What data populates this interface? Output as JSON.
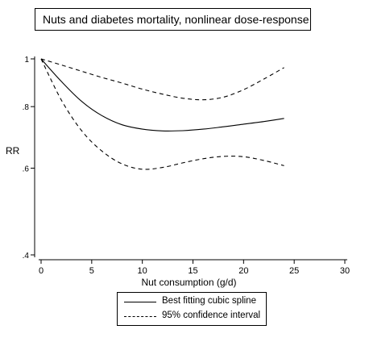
{
  "chart_data": {
    "type": "line",
    "title": "Nuts and diabetes mortality, nonlinear dose-response",
    "xlabel": "Nut consumption (g/d)",
    "ylabel": "RR",
    "x_ticks": [
      "0",
      "5",
      "10",
      "15",
      "20",
      "25",
      "30"
    ],
    "y_ticks": [
      "1",
      ".8",
      ".6",
      ".4"
    ],
    "xlim": [
      0,
      30
    ],
    "ylim": [
      0.4,
      1.0
    ],
    "y_scale": "log",
    "grid": false,
    "legend_position": "bottom",
    "x": [
      0,
      2,
      4,
      6,
      8,
      10,
      12,
      14,
      16,
      18,
      20,
      22,
      24
    ],
    "series": [
      {
        "name": "Best fitting cubic spline",
        "style": "solid",
        "values": [
          1.0,
          0.9,
          0.82,
          0.767,
          0.735,
          0.72,
          0.714,
          0.715,
          0.72,
          0.728,
          0.737,
          0.746,
          0.757
        ]
      },
      {
        "name": "95% confidence interval",
        "style": "dashed",
        "role": "lower",
        "values": [
          1.0,
          0.825,
          0.715,
          0.65,
          0.612,
          0.597,
          0.602,
          0.615,
          0.627,
          0.634,
          0.633,
          0.622,
          0.607
        ]
      },
      {
        "name": "95% confidence interval",
        "style": "dashed",
        "role": "upper",
        "values": [
          1.0,
          0.972,
          0.944,
          0.917,
          0.893,
          0.868,
          0.848,
          0.832,
          0.826,
          0.836,
          0.866,
          0.91,
          0.96
        ]
      }
    ]
  }
}
